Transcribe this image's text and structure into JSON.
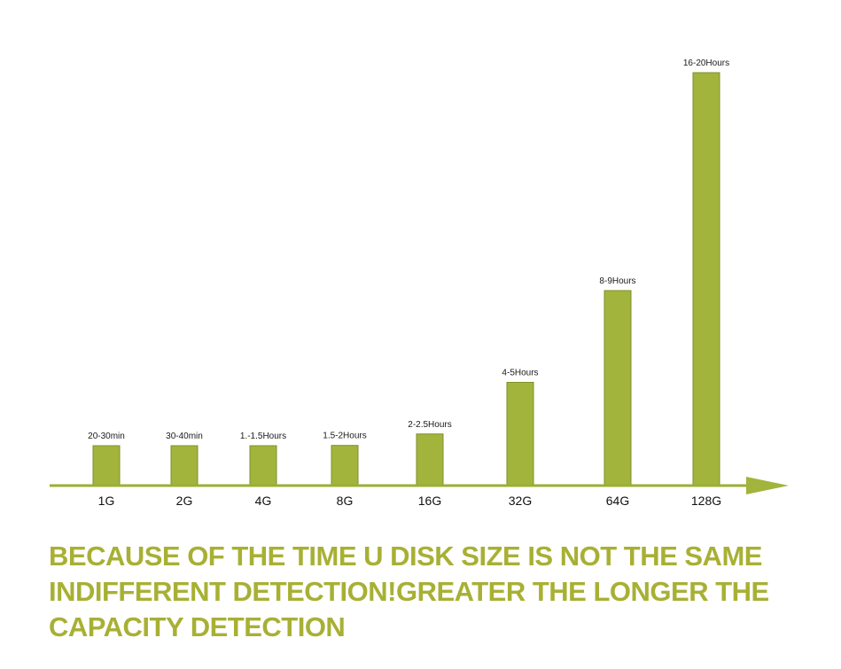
{
  "chart_data": {
    "type": "bar",
    "categories": [
      "1G",
      "2G",
      "4G",
      "8G",
      "16G",
      "32G",
      "64G",
      "128G"
    ],
    "values": [
      0.42,
      0.58,
      1.25,
      1.75,
      2.25,
      4.5,
      8.5,
      18
    ],
    "value_labels": [
      "20-30min",
      "30-40min",
      "1.-1.5Hours",
      "1.5-2Hours",
      "2-2.5Hours",
      "4-5Hours",
      "8-9Hours",
      "16-20Hours"
    ],
    "title": "",
    "xlabel": "",
    "ylabel": "",
    "axis": "x-axis arrow only, no y-axis, no grid",
    "bar_color": "#a2b43c"
  },
  "caption": {
    "lines": [
      "BECAUSE OF THE TIME U DISK SIZE IS NOT THE SAME",
      "INDIFFERENT DETECTION!GREATER THE LONGER THE",
      "CAPACITY DETECTION"
    ],
    "color": "#a8b034"
  }
}
